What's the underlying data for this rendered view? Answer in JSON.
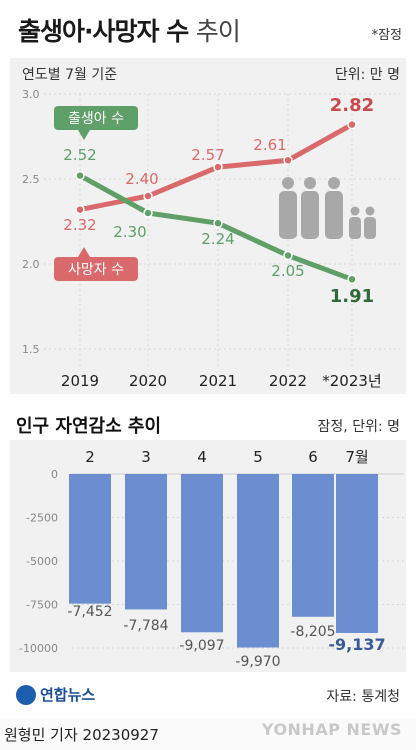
{
  "header": {
    "title_main": "출생아·사망자 수",
    "title_sub": "추이",
    "note": "*잠정"
  },
  "colors": {
    "births": "#5f9f68",
    "deaths": "#d9696b",
    "bars": "#6b8ed0",
    "people_icon": "#a8a8a8"
  },
  "chart_data": [
    {
      "type": "line",
      "subtitle": "연도별 7월 기준",
      "unit": "단위: 만 명",
      "categories": [
        "2019",
        "2020",
        "2021",
        "2022",
        "*2023년"
      ],
      "ylim": [
        1.5,
        3.0
      ],
      "yticks": [
        "1.5",
        "2.0",
        "2.5",
        "3.0"
      ],
      "series": [
        {
          "name": "출생아 수",
          "values": [
            2.52,
            2.3,
            2.24,
            2.05,
            1.91
          ],
          "labels": [
            "2.52",
            "2.30",
            "2.24",
            "2.05",
            "1.91"
          ]
        },
        {
          "name": "사망자 수",
          "values": [
            2.32,
            2.4,
            2.57,
            2.61,
            2.82
          ],
          "labels": [
            "2.32",
            "2.40",
            "2.57",
            "2.61",
            "2.82"
          ]
        }
      ],
      "icon": "people-family-icon"
    },
    {
      "type": "bar",
      "title": "인구 자연감소 추이",
      "unit": "잠정, 단위: 명",
      "categories": [
        "2",
        "3",
        "4",
        "5",
        "6",
        "7월"
      ],
      "values": [
        -7452,
        -7784,
        -9097,
        -9970,
        -8205,
        -9137
      ],
      "labels": [
        "-7,452",
        "-7,784",
        "-9,097",
        "-9,970",
        "-8,205",
        "-9,137"
      ],
      "ylim": [
        -10000,
        0
      ],
      "yticks": [
        "0",
        "-2500",
        "-5000",
        "-7500",
        "-10000"
      ]
    }
  ],
  "footer": {
    "logo_text": "연합뉴스",
    "source": "자료: 통계청",
    "reporter": "원형민 기자  20230927",
    "watermark": "YONHAP NEWS"
  }
}
